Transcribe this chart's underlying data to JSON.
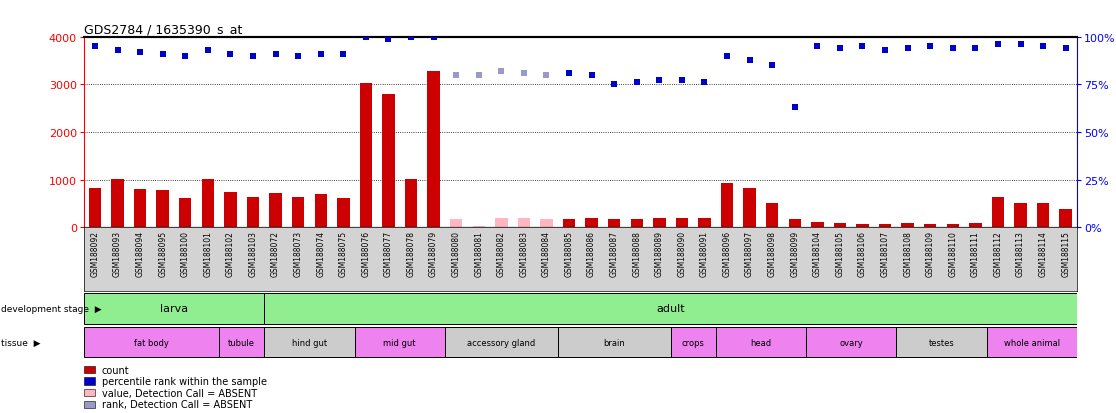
{
  "title": "GDS2784 / 1635390_s_at",
  "samples": [
    "GSM188092",
    "GSM188093",
    "GSM188094",
    "GSM188095",
    "GSM188100",
    "GSM188101",
    "GSM188102",
    "GSM188103",
    "GSM188072",
    "GSM188073",
    "GSM188074",
    "GSM188075",
    "GSM188076",
    "GSM188077",
    "GSM188078",
    "GSM188079",
    "GSM188080",
    "GSM188081",
    "GSM188082",
    "GSM188083",
    "GSM188084",
    "GSM188085",
    "GSM188086",
    "GSM188087",
    "GSM188088",
    "GSM188089",
    "GSM188090",
    "GSM188091",
    "GSM188096",
    "GSM188097",
    "GSM188098",
    "GSM188099",
    "GSM188104",
    "GSM188105",
    "GSM188106",
    "GSM188107",
    "GSM188108",
    "GSM188109",
    "GSM188110",
    "GSM188111",
    "GSM188112",
    "GSM188113",
    "GSM188114",
    "GSM188115"
  ],
  "counts": [
    820,
    1020,
    800,
    770,
    620,
    1010,
    740,
    640,
    720,
    640,
    700,
    620,
    3020,
    2800,
    1010,
    3280,
    160,
    30,
    190,
    200,
    170,
    180,
    200,
    160,
    180,
    200,
    200,
    200,
    920,
    820,
    500,
    160,
    100,
    80,
    60,
    70,
    80,
    70,
    70,
    90,
    640,
    500,
    500,
    380
  ],
  "percentile_ranks": [
    95,
    93,
    92,
    91,
    90,
    93,
    91,
    90,
    91,
    90,
    91,
    91,
    100,
    99,
    100,
    100,
    80,
    80,
    82,
    81,
    80,
    81,
    80,
    75,
    76,
    77,
    77,
    76,
    90,
    88,
    85,
    63,
    95,
    94,
    95,
    93,
    94,
    95,
    94,
    94,
    96,
    96,
    95,
    94
  ],
  "absent_mask_count": [
    false,
    false,
    false,
    false,
    false,
    false,
    false,
    false,
    false,
    false,
    false,
    false,
    false,
    false,
    false,
    false,
    true,
    true,
    true,
    true,
    true,
    false,
    false,
    false,
    false,
    false,
    false,
    false,
    false,
    false,
    false,
    false,
    false,
    false,
    false,
    false,
    false,
    false,
    false,
    false,
    false,
    false,
    false,
    false
  ],
  "absent_mask_rank": [
    false,
    false,
    false,
    false,
    false,
    false,
    false,
    false,
    false,
    false,
    false,
    false,
    false,
    false,
    false,
    false,
    true,
    true,
    true,
    true,
    true,
    false,
    false,
    false,
    false,
    false,
    false,
    false,
    false,
    false,
    false,
    false,
    false,
    false,
    false,
    false,
    false,
    false,
    false,
    false,
    false,
    false,
    false,
    false
  ],
  "development_stages": [
    {
      "label": "larva",
      "start": 0,
      "end": 7
    },
    {
      "label": "adult",
      "start": 8,
      "end": 43
    }
  ],
  "tissues": [
    {
      "label": "fat body",
      "start": 0,
      "end": 5,
      "color": "#ee82ee"
    },
    {
      "label": "tubule",
      "start": 6,
      "end": 7,
      "color": "#ee82ee"
    },
    {
      "label": "hind gut",
      "start": 8,
      "end": 11,
      "color": "#cccccc"
    },
    {
      "label": "mid gut",
      "start": 12,
      "end": 15,
      "color": "#ee82ee"
    },
    {
      "label": "accessory gland",
      "start": 16,
      "end": 20,
      "color": "#cccccc"
    },
    {
      "label": "brain",
      "start": 21,
      "end": 25,
      "color": "#cccccc"
    },
    {
      "label": "crops",
      "start": 26,
      "end": 27,
      "color": "#ee82ee"
    },
    {
      "label": "head",
      "start": 28,
      "end": 31,
      "color": "#ee82ee"
    },
    {
      "label": "ovary",
      "start": 32,
      "end": 35,
      "color": "#ee82ee"
    },
    {
      "label": "testes",
      "start": 36,
      "end": 39,
      "color": "#cccccc"
    },
    {
      "label": "whole animal",
      "start": 40,
      "end": 43,
      "color": "#ee82ee"
    }
  ],
  "y_max_count": 4000,
  "y_ticks_count": [
    0,
    1000,
    2000,
    3000,
    4000
  ],
  "y_ticks_pct": [
    0,
    25,
    50,
    75,
    100
  ],
  "bar_color": "#cc0000",
  "dot_color_present": "#0000cc",
  "dot_color_absent_count": "#ffb6c1",
  "dot_color_absent_rank": "#9999cc",
  "stage_color": "#90ee90",
  "xticklabel_bg": "#d3d3d3",
  "legend_items": [
    {
      "label": "count",
      "color": "#cc0000"
    },
    {
      "label": "percentile rank within the sample",
      "color": "#0000cc"
    },
    {
      "label": "value, Detection Call = ABSENT",
      "color": "#ffb6c1"
    },
    {
      "label": "rank, Detection Call = ABSENT",
      "color": "#9999cc"
    }
  ]
}
